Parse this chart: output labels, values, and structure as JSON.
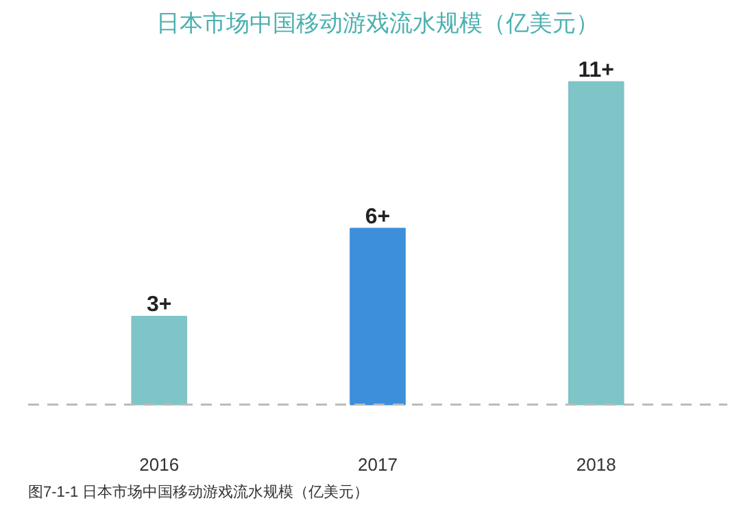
{
  "chart_data": {
    "type": "bar",
    "title": "日本市场中国移动游戏流水规模（亿美元）",
    "categories": [
      "2016",
      "2017",
      "2018"
    ],
    "values": [
      3,
      6,
      11
    ],
    "value_labels": [
      "3+",
      "6+",
      "11+"
    ],
    "colors": [
      "#7fc4c6",
      "#3d8fdb",
      "#7fc4c6"
    ],
    "ref_lines": [
      {
        "axis": "y",
        "value": 0,
        "color": "#bbbbbb",
        "line_style": "dashed"
      }
    ],
    "annotations": [
      "图7-1-1 日本市场中国移动游戏流水规模（亿美元）"
    ]
  }
}
